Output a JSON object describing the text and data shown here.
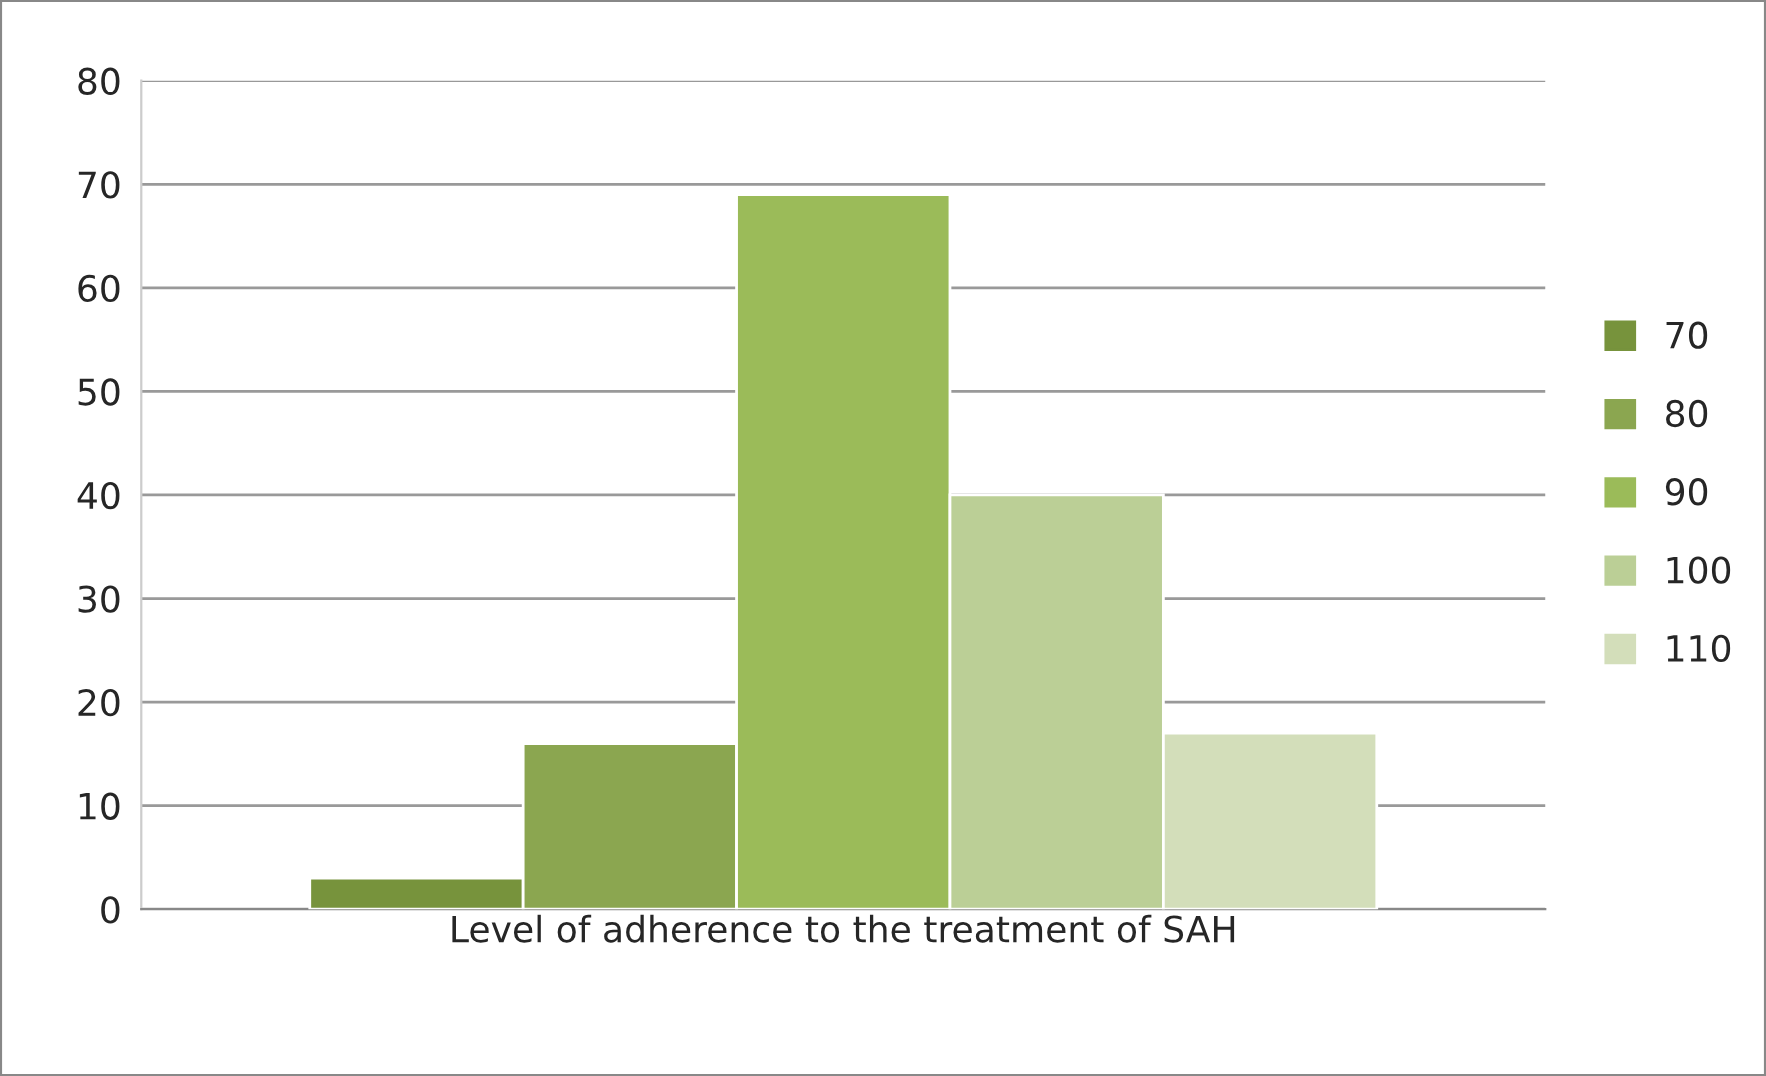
{
  "chart_data": {
    "type": "bar",
    "categories": [
      "Level of adherence to the treatment of SAH"
    ],
    "series": [
      {
        "name": "70",
        "color": "#77933c",
        "values": [
          3
        ]
      },
      {
        "name": "80",
        "color": "#8ba650",
        "values": [
          16
        ]
      },
      {
        "name": "90",
        "color": "#9bbb59",
        "values": [
          69
        ]
      },
      {
        "name": "100",
        "color": "#bbcf96",
        "values": [
          40
        ]
      },
      {
        "name": "110",
        "color": "#d3deba",
        "values": [
          17
        ]
      }
    ],
    "ylim": [
      0,
      80
    ],
    "yticks": [
      0,
      10,
      20,
      30,
      40,
      50,
      60,
      70,
      80
    ],
    "grid": "y",
    "legend": "right"
  }
}
